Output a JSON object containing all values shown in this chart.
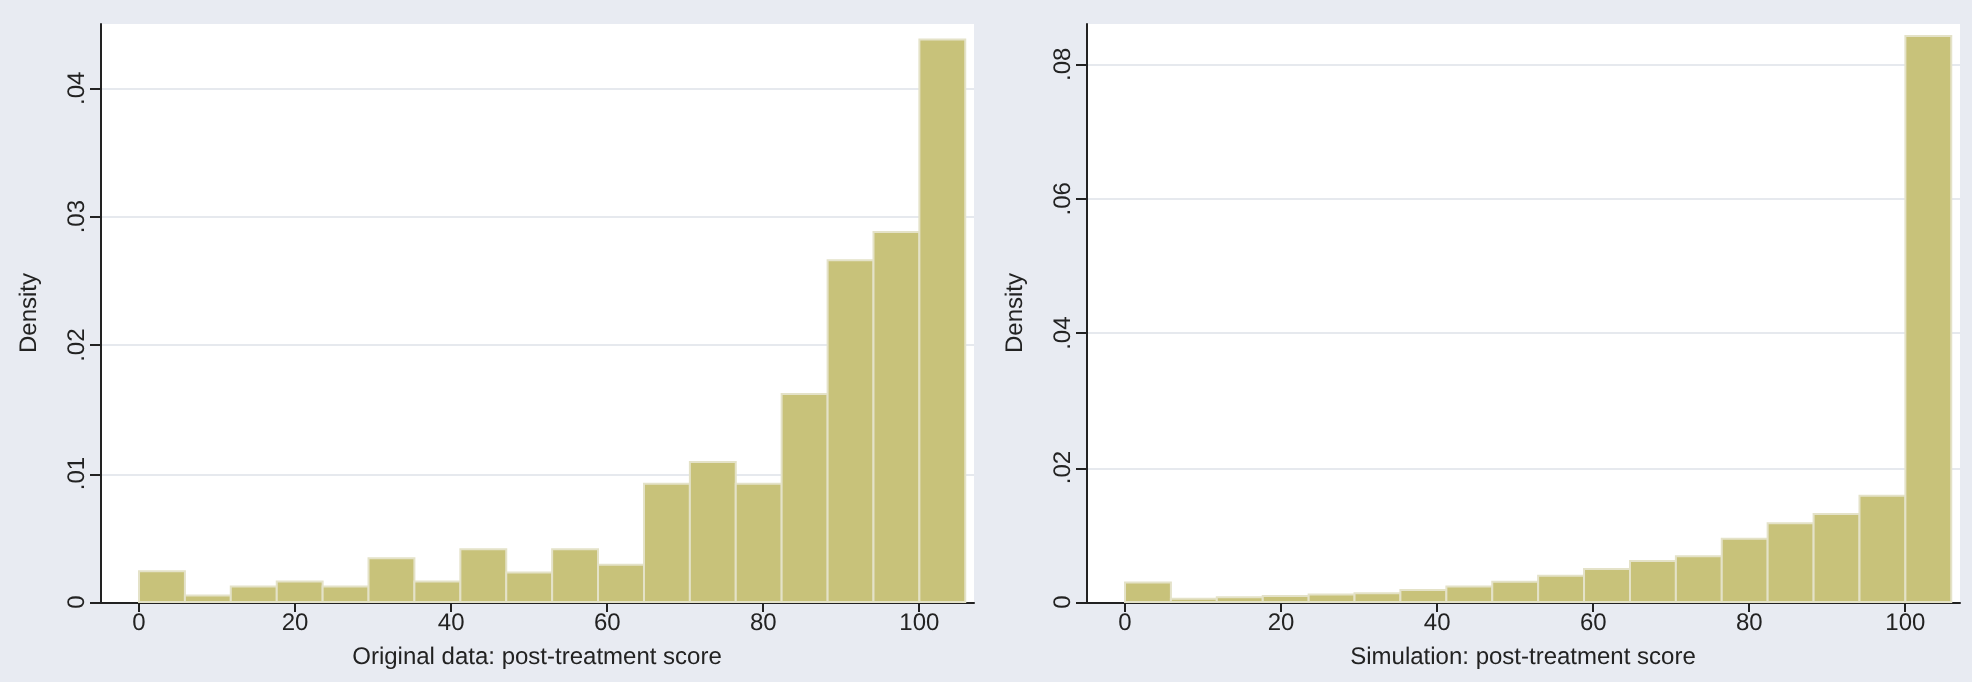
{
  "chart_data": [
    {
      "type": "histogram",
      "xlabel": "Original data: post-treatment score",
      "ylabel": "Density",
      "color": "#c8c27a",
      "bins": [
        0,
        5.88,
        11.76,
        17.65,
        23.53,
        29.41,
        35.29,
        41.18,
        47.06,
        52.94,
        58.82,
        64.71,
        70.59,
        76.47,
        82.35,
        88.24,
        94.12,
        100,
        105.88
      ],
      "values": [
        0.0024,
        0.0005,
        0.0012,
        0.0016,
        0.0012,
        0.0034,
        0.0016,
        0.0041,
        0.0023,
        0.0041,
        0.0029,
        0.0092,
        0.0109,
        0.0092,
        0.0162,
        0.0266,
        0.0288,
        0.0438
      ],
      "xlim": [
        -5,
        107
      ],
      "xticks": [
        0,
        20,
        40,
        60,
        80,
        100
      ],
      "ylim": [
        0,
        0.045
      ],
      "yticks": [
        {
          "value": 0,
          "label": "0"
        },
        {
          "value": 0.01,
          "label": ".01"
        },
        {
          "value": 0.02,
          "label": ".02"
        },
        {
          "value": 0.03,
          "label": ".03"
        },
        {
          "value": 0.04,
          "label": ".04"
        }
      ],
      "grid": "y"
    },
    {
      "type": "histogram",
      "xlabel": "Simulation: post-treatment score",
      "ylabel": "Density",
      "color": "#c8c27a",
      "bins": [
        0,
        5.88,
        11.76,
        17.65,
        23.53,
        29.41,
        35.29,
        41.18,
        47.06,
        52.94,
        58.82,
        64.71,
        70.59,
        76.47,
        82.35,
        88.24,
        94.12,
        100,
        105.88
      ],
      "values": [
        0.0029,
        0.0005,
        0.0007,
        0.0009,
        0.0011,
        0.0013,
        0.0018,
        0.0023,
        0.003,
        0.0039,
        0.0049,
        0.0061,
        0.0068,
        0.0094,
        0.0117,
        0.0131,
        0.0158,
        0.0842
      ],
      "xlim": [
        -5,
        107
      ],
      "xticks": [
        0,
        20,
        40,
        60,
        80,
        100
      ],
      "ylim": [
        0,
        0.086
      ],
      "yticks": [
        {
          "value": 0,
          "label": "0"
        },
        {
          "value": 0.02,
          "label": ".02"
        },
        {
          "value": 0.04,
          "label": ".04"
        },
        {
          "value": 0.06,
          "label": ".06"
        },
        {
          "value": 0.08,
          "label": ".08"
        }
      ],
      "grid": "y"
    }
  ]
}
